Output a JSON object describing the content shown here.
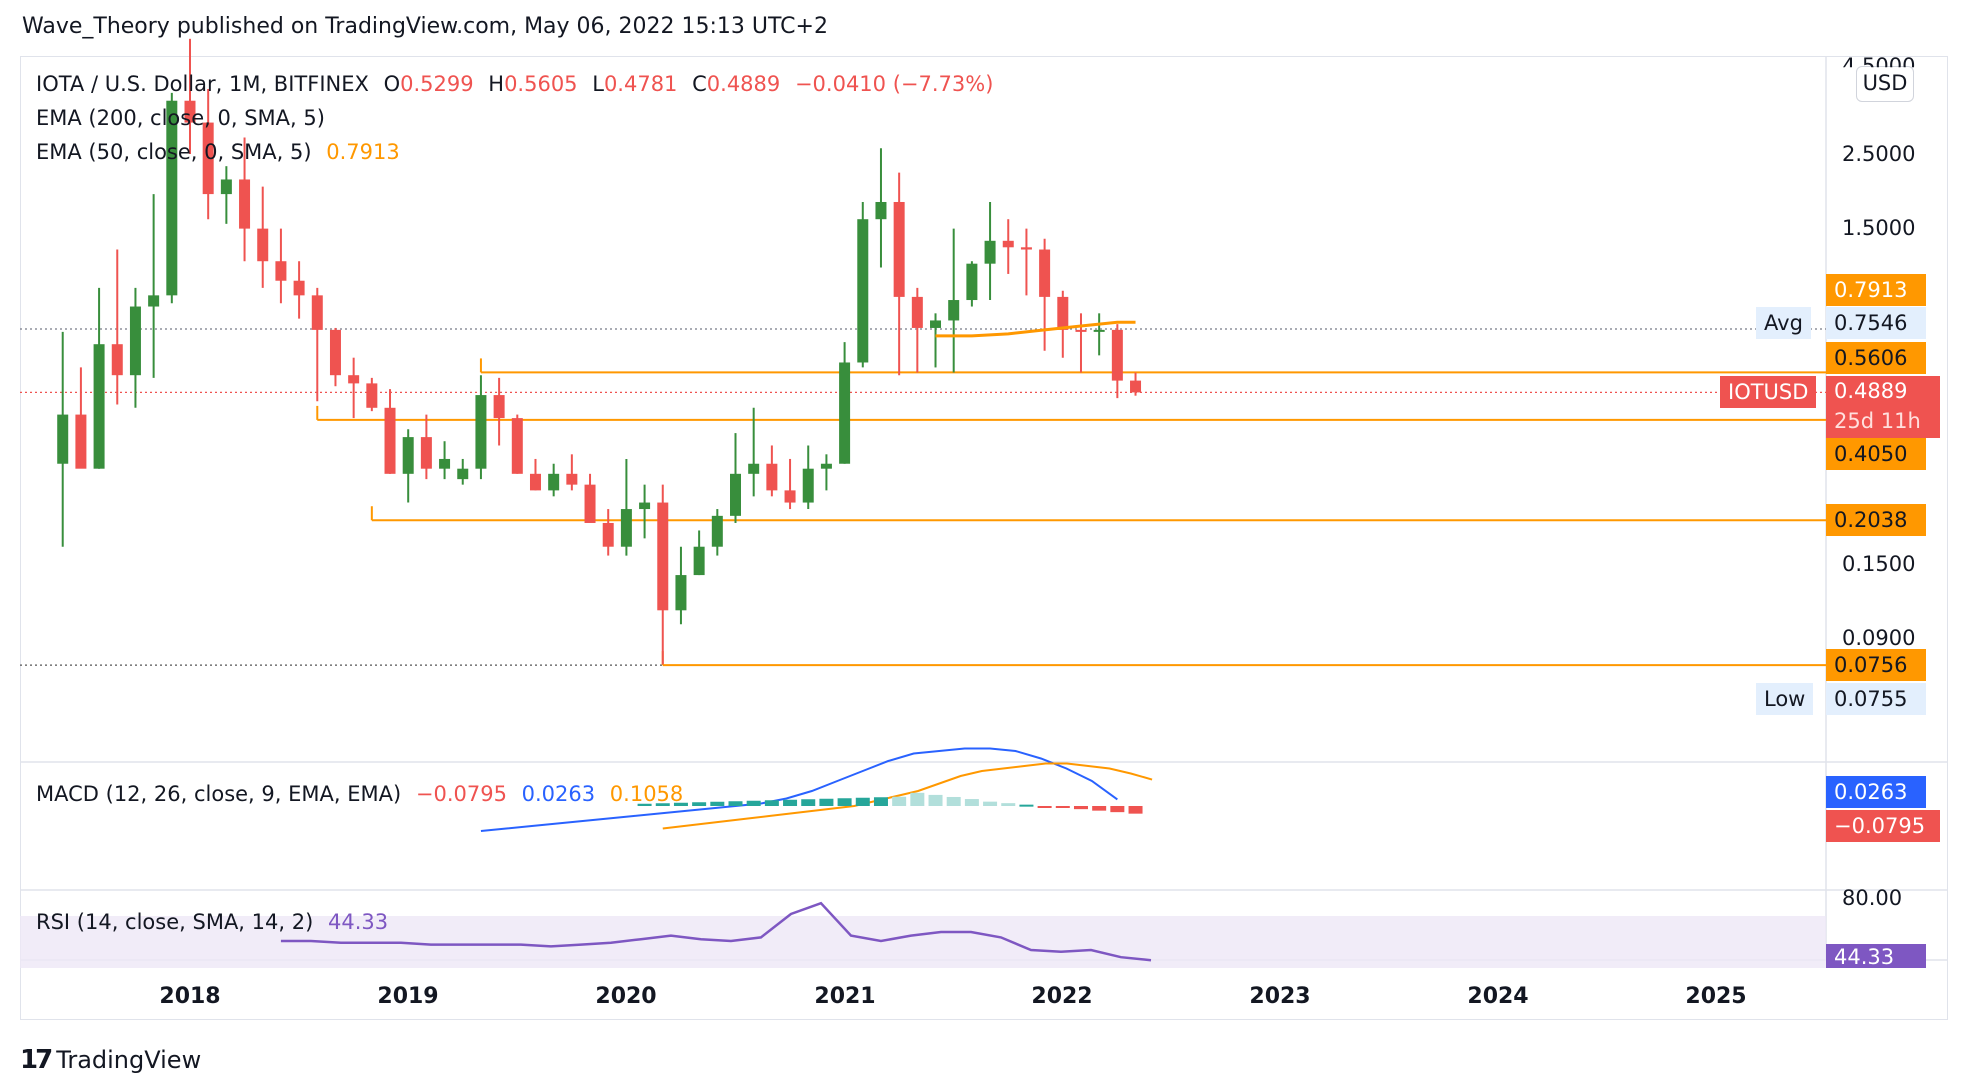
{
  "header": {
    "title": "Wave_Theory published on TradingView.com, May 06, 2022 15:13 UTC+2"
  },
  "legend": {
    "symbol": "IOTA / U.S. Dollar, 1M, BITFINEX",
    "o_label": "O",
    "o_value": "0.5299",
    "h_label": "H",
    "h_value": "0.5605",
    "l_label": "L",
    "l_value": "0.4781",
    "c_label": "C",
    "c_value": "0.4889",
    "change": "−0.0410 (−7.73%)",
    "ema200": "EMA (200, close, 0, SMA, 5)",
    "ema50": "EMA (50, close, 0, SMA, 5)",
    "ema50_value": "0.7913"
  },
  "macd": {
    "label": "MACD (12, 26, close, 9, EMA, EMA)",
    "hist": "−0.0795",
    "macd": "0.0263",
    "signal": "0.1058"
  },
  "rsi": {
    "label": "RSI (14, close, SMA, 14, 2)",
    "value": "44.33"
  },
  "price_axis": {
    "currency": "USD",
    "ticks": [
      "4.5000",
      "2.5000",
      "1.5000",
      "0.1500",
      "0.0900"
    ],
    "ema50_badge": "0.7913",
    "avg_label": "Avg",
    "avg_value": "0.7546",
    "hline_0560": "0.5606",
    "symbol_badge": "IOTUSD",
    "last_price": "0.4889",
    "countdown": "25d 11h",
    "hline_0405": "0.4050",
    "hline_0203": "0.2038",
    "hline_0075": "0.0756",
    "low_label": "Low",
    "low_value": "0.0755",
    "macd_badge": "0.0263",
    "hist_badge": "−0.0795",
    "rsi_tick": "80.00",
    "rsi_badge": "44.33"
  },
  "time_axis": [
    "2018",
    "2019",
    "2020",
    "2021",
    "2022",
    "2023",
    "2024",
    "2025"
  ],
  "branding": {
    "logo_text": "TradingView"
  },
  "colors": {
    "up": "#26a69a",
    "up_dark": "#388e3c",
    "down": "#ef5350",
    "orange": "#ff9800",
    "macd_blue": "#2962ff",
    "rsi_purple": "#7e57c2"
  },
  "chart_data": {
    "type": "candlestick",
    "symbol": "IOTUSD",
    "interval": "1M",
    "x": [
      "2017-06",
      "2017-07",
      "2017-08",
      "2017-09",
      "2017-10",
      "2017-11",
      "2017-12",
      "2018-01",
      "2018-02",
      "2018-03",
      "2018-04",
      "2018-05",
      "2018-06",
      "2018-07",
      "2018-08",
      "2018-09",
      "2018-10",
      "2018-11",
      "2018-12",
      "2019-01",
      "2019-02",
      "2019-03",
      "2019-04",
      "2019-05",
      "2019-06",
      "2019-07",
      "2019-08",
      "2019-09",
      "2019-10",
      "2019-11",
      "2019-12",
      "2020-01",
      "2020-02",
      "2020-03",
      "2020-04",
      "2020-05",
      "2020-06",
      "2020-07",
      "2020-08",
      "2020-09",
      "2020-10",
      "2020-11",
      "2020-12",
      "2021-01",
      "2021-02",
      "2021-03",
      "2021-04",
      "2021-05",
      "2021-06",
      "2021-07",
      "2021-08",
      "2021-09",
      "2021-10",
      "2021-11",
      "2021-12",
      "2022-01",
      "2022-02",
      "2022-03",
      "2022-04",
      "2022-05"
    ],
    "open": [
      0.3,
      0.42,
      0.29,
      0.68,
      0.55,
      0.88,
      0.95,
      3.6,
      3.1,
      1.9,
      2.1,
      1.5,
      1.2,
      1.05,
      0.95,
      0.75,
      0.55,
      0.52,
      0.44,
      0.28,
      0.36,
      0.29,
      0.27,
      0.29,
      0.48,
      0.41,
      0.28,
      0.25,
      0.28,
      0.26,
      0.2,
      0.17,
      0.22,
      0.23,
      0.11,
      0.14,
      0.17,
      0.21,
      0.28,
      0.3,
      0.25,
      0.23,
      0.29,
      0.3,
      0.6,
      1.6,
      1.8,
      0.94,
      0.76,
      0.8,
      0.92,
      1.18,
      1.38,
      1.32,
      1.3,
      0.94,
      0.75,
      0.74,
      0.75,
      0.53
    ],
    "high": [
      0.74,
      0.58,
      1.0,
      1.3,
      1.0,
      1.9,
      3.8,
      5.5,
      3.9,
      2.3,
      2.8,
      2.0,
      1.5,
      1.2,
      1.0,
      0.76,
      0.62,
      0.54,
      0.5,
      0.38,
      0.42,
      0.35,
      0.31,
      0.55,
      0.54,
      0.42,
      0.31,
      0.3,
      0.32,
      0.28,
      0.22,
      0.31,
      0.26,
      0.26,
      0.17,
      0.19,
      0.22,
      0.37,
      0.44,
      0.34,
      0.31,
      0.34,
      0.32,
      0.69,
      1.8,
      2.6,
      2.2,
      1.0,
      0.84,
      1.5,
      1.2,
      1.8,
      1.6,
      1.5,
      1.4,
      0.98,
      0.84,
      0.84,
      0.78,
      0.56
    ],
    "low": [
      0.17,
      0.3,
      0.29,
      0.45,
      0.44,
      0.54,
      0.9,
      2.5,
      1.6,
      1.55,
      1.2,
      1.0,
      0.9,
      0.81,
      0.46,
      0.51,
      0.41,
      0.43,
      0.28,
      0.23,
      0.27,
      0.27,
      0.26,
      0.27,
      0.34,
      0.28,
      0.25,
      0.24,
      0.25,
      0.22,
      0.16,
      0.16,
      0.18,
      0.076,
      0.1,
      0.14,
      0.16,
      0.2,
      0.24,
      0.24,
      0.22,
      0.22,
      0.25,
      0.3,
      0.58,
      1.15,
      0.55,
      0.56,
      0.58,
      0.56,
      0.88,
      0.92,
      1.1,
      0.95,
      0.65,
      0.62,
      0.56,
      0.63,
      0.47,
      0.478
    ],
    "close": [
      0.42,
      0.29,
      0.68,
      0.55,
      0.88,
      0.95,
      3.6,
      3.1,
      1.9,
      2.1,
      1.5,
      1.2,
      1.05,
      0.95,
      0.75,
      0.55,
      0.52,
      0.44,
      0.28,
      0.36,
      0.29,
      0.31,
      0.29,
      0.48,
      0.41,
      0.28,
      0.25,
      0.28,
      0.26,
      0.2,
      0.17,
      0.22,
      0.23,
      0.11,
      0.14,
      0.17,
      0.21,
      0.28,
      0.3,
      0.25,
      0.23,
      0.29,
      0.3,
      0.6,
      1.6,
      1.8,
      0.94,
      0.76,
      0.8,
      0.92,
      1.18,
      1.38,
      1.32,
      1.3,
      0.94,
      0.75,
      0.74,
      0.75,
      0.53,
      0.4889
    ],
    "ema50": [
      0.72,
      0.72,
      0.73,
      0.75,
      0.77,
      0.79,
      0.79
    ],
    "ema50_x": [
      "2021-06",
      "2021-08",
      "2021-10",
      "2021-12",
      "2022-02",
      "2022-04",
      "2022-05"
    ],
    "horizontal_levels": [
      0.5606,
      0.405,
      0.2038,
      0.0756
    ],
    "macd_line": [
      -0.1,
      -0.09,
      -0.08,
      -0.07,
      -0.06,
      -0.05,
      -0.04,
      -0.03,
      -0.02,
      -0.01,
      0.0,
      0.01,
      0.03,
      0.06,
      0.1,
      0.14,
      0.18,
      0.21,
      0.22,
      0.23,
      0.23,
      0.22,
      0.19,
      0.15,
      0.1,
      0.0263
    ],
    "signal_line": [
      -0.09,
      -0.08,
      -0.07,
      -0.06,
      -0.05,
      -0.04,
      -0.03,
      -0.02,
      -0.01,
      0.0,
      0.02,
      0.04,
      0.06,
      0.09,
      0.12,
      0.14,
      0.15,
      0.16,
      0.17,
      0.17,
      0.16,
      0.15,
      0.13,
      0.1058
    ],
    "rsi": [
      55,
      55,
      54,
      54,
      54,
      53,
      53,
      53,
      53,
      52,
      53,
      54,
      56,
      58,
      56,
      55,
      57,
      70,
      76,
      58,
      55,
      58,
      60,
      60,
      57,
      50,
      49,
      50,
      46,
      44.33
    ],
    "ylabel": "USD",
    "scale": "log"
  }
}
